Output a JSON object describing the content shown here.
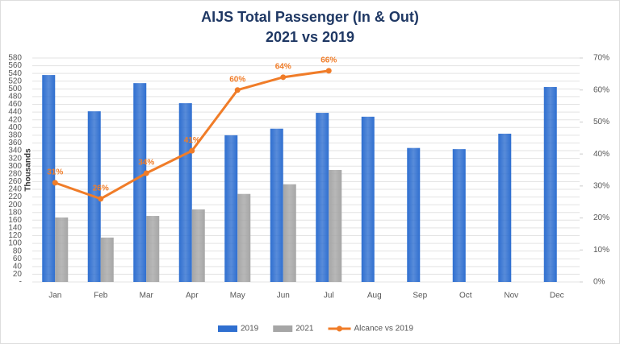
{
  "chart_data": {
    "type": "bar_line",
    "title": "AIJS Total Passenger (In & Out)",
    "subtitle": "2021 vs 2019",
    "y_label": "Thousands",
    "categories": [
      "Jan",
      "Feb",
      "Mar",
      "Apr",
      "May",
      "Jun",
      "Jul",
      "Aug",
      "Sep",
      "Oct",
      "Nov",
      "Dec"
    ],
    "series": [
      {
        "name": "2019",
        "type": "bar",
        "color": "#2f6fd0",
        "values": [
          536,
          442,
          515,
          463,
          380,
          397,
          438,
          428,
          347,
          344,
          384,
          505
        ]
      },
      {
        "name": "2021",
        "type": "bar",
        "color": "#a6a6a6",
        "values": [
          167,
          115,
          171,
          188,
          228,
          253,
          290,
          null,
          null,
          null,
          null,
          null
        ]
      },
      {
        "name": "Alcance vs 2019",
        "type": "line",
        "axis": "y2",
        "color": "#f07c28",
        "values": [
          31,
          26,
          34,
          41,
          60,
          64,
          66,
          null,
          null,
          null,
          null,
          null
        ],
        "value_labels": [
          "31%",
          "26%",
          "34%",
          "41%",
          "60%",
          "64%",
          "66%",
          null,
          null,
          null,
          null,
          null
        ]
      }
    ],
    "ylim": [
      0,
      580
    ],
    "yticks": [
      {
        "value": 0,
        "label": "-"
      },
      20,
      40,
      60,
      80,
      100,
      120,
      140,
      160,
      180,
      200,
      220,
      240,
      260,
      280,
      300,
      320,
      340,
      360,
      380,
      400,
      420,
      440,
      460,
      480,
      500,
      520,
      540,
      560,
      580
    ],
    "y2lim": [
      0,
      70
    ],
    "y2ticks": [
      {
        "value": 0,
        "label": "0%"
      },
      {
        "value": 10,
        "label": "10%"
      },
      {
        "value": 20,
        "label": "20%"
      },
      {
        "value": 30,
        "label": "30%"
      },
      {
        "value": 40,
        "label": "40%"
      },
      {
        "value": 50,
        "label": "50%"
      },
      {
        "value": 60,
        "label": "60%"
      },
      {
        "value": 70,
        "label": "70%"
      }
    ],
    "grid": true,
    "legend": "bottom"
  }
}
